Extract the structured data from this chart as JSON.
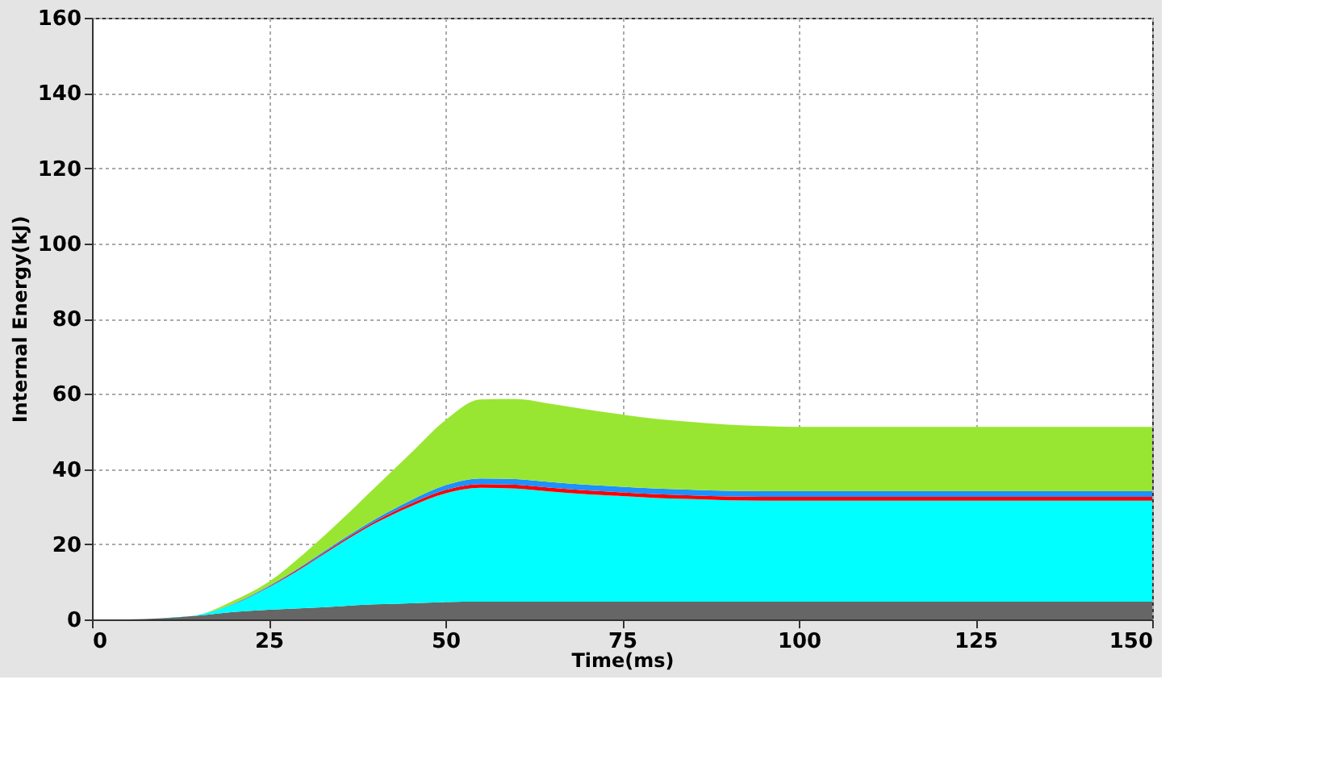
{
  "chart_data": {
    "type": "area",
    "stacked": true,
    "xlabel": "Time(ms)",
    "ylabel": "Internal Energy(kJ)",
    "x": [
      0,
      5,
      10,
      15,
      20,
      25,
      30,
      35,
      40,
      45,
      50,
      55,
      60,
      65,
      70,
      75,
      80,
      85,
      90,
      95,
      100,
      110,
      120,
      130,
      140,
      150
    ],
    "series": [
      {
        "color": "#666666",
        "values": [
          0,
          0,
          0.3,
          1,
          2,
          2.6,
          3,
          3.5,
          4,
          4.3,
          4.6,
          4.7,
          4.7,
          4.7,
          4.7,
          4.7,
          4.7,
          4.7,
          4.7,
          4.7,
          4.7,
          4.7,
          4.7,
          4.7,
          4.7,
          4.7
        ]
      },
      {
        "color": "#00ffff",
        "values": [
          0,
          0,
          0,
          0.2,
          2,
          5.9,
          11,
          16.5,
          21.5,
          25.7,
          28.9,
          30.3,
          30.1,
          29.3,
          28.6,
          28.1,
          27.6,
          27.3,
          27,
          26.9,
          26.9,
          26.9,
          26.9,
          26.9,
          26.9,
          26.9
        ]
      },
      {
        "color": "#ff0000",
        "values": [
          0,
          0,
          0,
          0,
          0.1,
          0.2,
          0.3,
          0.4,
          0.5,
          0.7,
          0.9,
          1,
          1,
          1,
          1,
          1,
          1,
          1,
          1,
          1,
          1,
          1,
          1,
          1,
          1,
          1
        ]
      },
      {
        "color": "#1e90ff",
        "values": [
          0,
          0,
          0,
          0,
          0.1,
          0.2,
          0.3,
          0.4,
          0.6,
          0.9,
          1.3,
          1.5,
          1.5,
          1.5,
          1.5,
          1.5,
          1.5,
          1.5,
          1.5,
          1.5,
          1.5,
          1.5,
          1.5,
          1.5,
          1.5,
          1.5
        ]
      },
      {
        "color": "#99e632",
        "values": [
          0,
          0,
          0,
          0,
          0.8,
          1.1,
          2.9,
          5.2,
          8.4,
          12.4,
          17.3,
          21,
          21.3,
          20.8,
          20,
          19.2,
          18.5,
          18,
          17.6,
          17.3,
          17.1,
          17.1,
          17.1,
          17.1,
          17.1,
          17.1
        ]
      }
    ],
    "xlim": [
      0,
      150
    ],
    "xticks": [
      0,
      25,
      50,
      75,
      100,
      125,
      150
    ],
    "ylim": [
      0,
      160
    ],
    "yticks": [
      0,
      20,
      40,
      60,
      80,
      100,
      120,
      140,
      160
    ],
    "grid": true,
    "legend": false
  }
}
